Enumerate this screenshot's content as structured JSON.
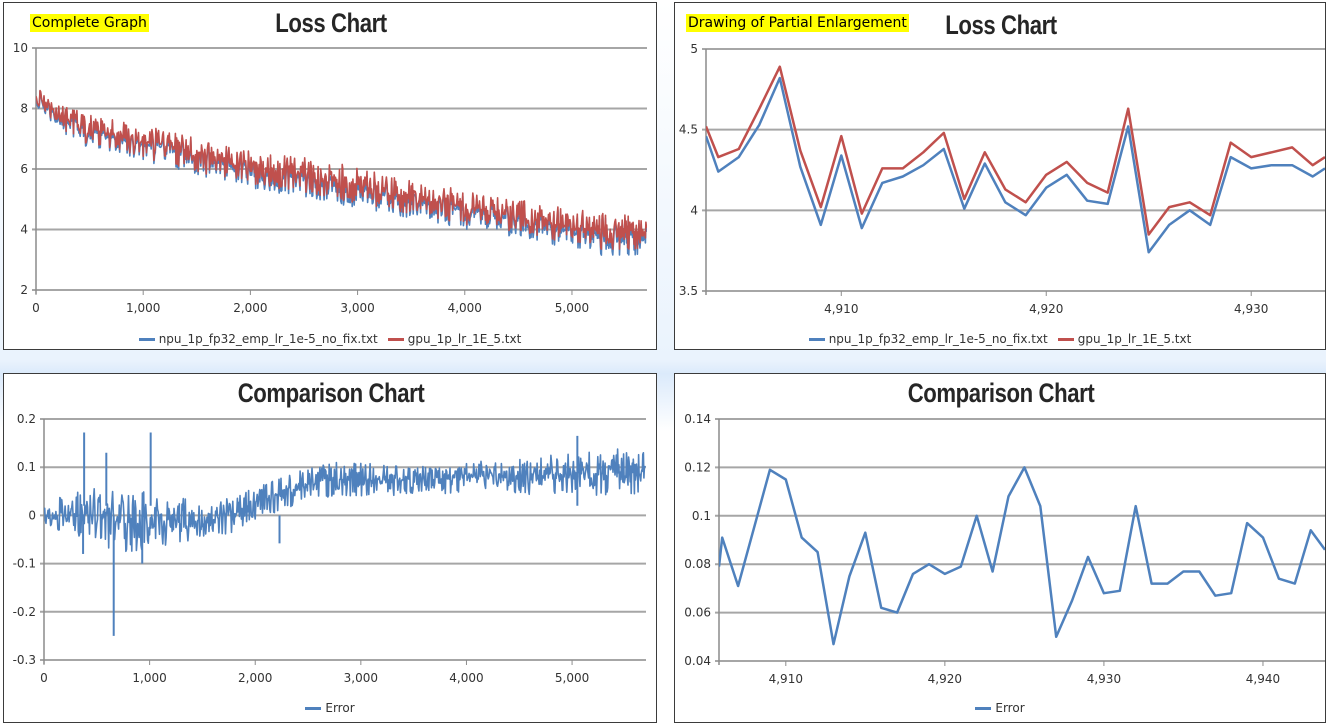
{
  "colors": {
    "npu": "#4f81bd",
    "gpu": "#c0504d",
    "error": "#4f81bd"
  },
  "chart_data": [
    {
      "id": "loss-full",
      "type": "line",
      "tag": "Complete Graph",
      "title": "Loss Chart",
      "xlim": [
        0,
        5700
      ],
      "ylim": [
        2,
        10
      ],
      "xticks": [
        0,
        1000,
        2000,
        3000,
        4000,
        5000
      ],
      "xtick_labels": [
        "0",
        "1,000",
        "2,000",
        "3,000",
        "4,000",
        "5,000"
      ],
      "yticks": [
        2,
        4,
        6,
        8,
        10
      ],
      "ytick_labels": [
        "2",
        "4",
        "6",
        "8",
        "10"
      ],
      "grid": true,
      "legend": "bottom",
      "x": [
        0,
        250,
        500,
        750,
        1000,
        1250,
        1500,
        1750,
        2000,
        2250,
        2500,
        2750,
        3000,
        3250,
        3500,
        3750,
        4000,
        4250,
        4500,
        4750,
        5000,
        5250,
        5500,
        5700
      ],
      "series": [
        {
          "name": "npu_1p_fp32_emp_lr_1e-5_no_fix.txt",
          "color_key": "npu",
          "min": [
            7.9,
            7.1,
            6.7,
            6.5,
            6.3,
            6.0,
            5.8,
            5.6,
            5.3,
            5.2,
            5.0,
            4.9,
            4.7,
            4.5,
            4.3,
            4.2,
            4.0,
            3.85,
            3.6,
            3.5,
            3.3,
            3.1,
            3.1,
            3.2
          ],
          "max": [
            8.7,
            8.0,
            7.8,
            7.5,
            7.3,
            7.2,
            6.9,
            6.7,
            6.5,
            6.4,
            6.3,
            6.0,
            5.9,
            5.7,
            5.5,
            5.4,
            5.2,
            5.0,
            4.9,
            4.7,
            4.6,
            4.5,
            4.4,
            4.2
          ]
        },
        {
          "name": "gpu_1p_lr_1E_5.txt",
          "color_key": "gpu",
          "min": [
            8.0,
            7.2,
            6.8,
            6.6,
            6.4,
            6.1,
            5.9,
            5.7,
            5.45,
            5.35,
            5.15,
            5.05,
            4.85,
            4.65,
            4.45,
            4.35,
            4.15,
            4.0,
            3.8,
            3.65,
            3.5,
            3.3,
            3.3,
            3.4
          ],
          "max": [
            8.7,
            8.1,
            7.9,
            7.6,
            7.4,
            7.3,
            7.0,
            6.8,
            6.6,
            6.5,
            6.4,
            6.2,
            6.1,
            5.8,
            5.6,
            5.5,
            5.3,
            5.1,
            5.0,
            4.8,
            4.7,
            4.6,
            4.5,
            4.3
          ]
        }
      ]
    },
    {
      "id": "loss-zoom",
      "type": "line",
      "tag": "Drawing of Partial Enlargement",
      "title": "Loss Chart",
      "xlim": [
        4903.4,
        4933.6
      ],
      "ylim": [
        3.5,
        5
      ],
      "xticks": [
        4910,
        4920,
        4930
      ],
      "xtick_labels": [
        "4,910",
        "4,920",
        "4,930"
      ],
      "yticks": [
        3.5,
        4,
        4.5,
        5
      ],
      "ytick_labels": [
        "3.5",
        "4",
        "4.5",
        "5"
      ],
      "grid": true,
      "legend": "bottom",
      "x": [
        4903.4,
        4904,
        4905,
        4906,
        4907,
        4908,
        4909,
        4910,
        4911,
        4912,
        4913,
        4914,
        4915,
        4916,
        4917,
        4918,
        4919,
        4920,
        4921,
        4922,
        4923,
        4924,
        4925,
        4926,
        4927,
        4928,
        4929,
        4930,
        4931,
        4932,
        4933,
        4933.6
      ],
      "series": [
        {
          "name": "npu_1p_fp32_emp_lr_1e-5_no_fix.txt",
          "color_key": "npu",
          "values": [
            4.46,
            4.24,
            4.33,
            4.53,
            4.82,
            4.27,
            3.91,
            4.34,
            3.89,
            4.17,
            4.21,
            4.28,
            4.38,
            4.01,
            4.29,
            4.05,
            3.97,
            4.14,
            4.22,
            4.06,
            4.04,
            4.52,
            3.74,
            3.91,
            4.0,
            3.91,
            4.33,
            4.26,
            4.28,
            4.28,
            4.21,
            4.26
          ]
        },
        {
          "name": "gpu_1p_lr_1E_5.txt",
          "color_key": "gpu",
          "values": [
            4.52,
            4.33,
            4.38,
            4.63,
            4.89,
            4.37,
            4.02,
            4.46,
            3.98,
            4.26,
            4.26,
            4.36,
            4.48,
            4.07,
            4.36,
            4.13,
            4.05,
            4.22,
            4.3,
            4.17,
            4.11,
            4.63,
            3.85,
            4.02,
            4.05,
            3.97,
            4.42,
            4.33,
            4.36,
            4.39,
            4.28,
            4.33
          ]
        }
      ]
    },
    {
      "id": "error-full",
      "type": "line",
      "title": "Comparison Chart",
      "xlim": [
        0,
        5700
      ],
      "ylim": [
        -0.3,
        0.2
      ],
      "xticks": [
        0,
        1000,
        2000,
        3000,
        4000,
        5000
      ],
      "xtick_labels": [
        "0",
        "1,000",
        "2,000",
        "3,000",
        "4,000",
        "5,000"
      ],
      "yticks": [
        -0.3,
        -0.2,
        -0.1,
        0,
        0.1,
        0.2
      ],
      "ytick_labels": [
        "-0.3",
        "-0.2",
        "-0.1",
        "0",
        "0.1",
        "0.2"
      ],
      "grid": true,
      "legend": "bottom",
      "x": [
        0,
        250,
        500,
        750,
        1000,
        1250,
        1500,
        1750,
        2000,
        2250,
        2500,
        2750,
        3000,
        3250,
        3500,
        3750,
        4000,
        4250,
        4500,
        4750,
        5000,
        5250,
        5500,
        5700
      ],
      "series": [
        {
          "name": "Error",
          "color_key": "error",
          "min": [
            -0.02,
            -0.04,
            -0.06,
            -0.08,
            -0.07,
            -0.06,
            -0.05,
            -0.04,
            -0.01,
            0.01,
            0.03,
            0.04,
            0.04,
            0.04,
            0.045,
            0.045,
            0.045,
            0.05,
            0.045,
            0.04,
            0.04,
            0.04,
            0.04,
            0.05
          ],
          "max": [
            0.02,
            0.05,
            0.06,
            0.05,
            0.05,
            0.04,
            0.03,
            0.04,
            0.06,
            0.08,
            0.1,
            0.11,
            0.11,
            0.105,
            0.105,
            0.11,
            0.11,
            0.115,
            0.12,
            0.125,
            0.13,
            0.135,
            0.14,
            0.14
          ],
          "spikes": [
            [
              380,
              0.172
            ],
            [
              370,
              -0.08
            ],
            [
              590,
              0.13
            ],
            [
              660,
              -0.25
            ],
            [
              930,
              -0.1
            ],
            [
              1010,
              0.172
            ],
            [
              2230,
              -0.058
            ],
            [
              5050,
              0.165
            ]
          ]
        }
      ]
    },
    {
      "id": "error-zoom",
      "type": "line",
      "title": "Comparison Chart",
      "xlim": [
        4905.8,
        4943.9
      ],
      "ylim": [
        0.04,
        0.14
      ],
      "xticks": [
        4910,
        4920,
        4930,
        4940
      ],
      "xtick_labels": [
        "4,910",
        "4,920",
        "4,930",
        "4,940"
      ],
      "yticks": [
        0.04,
        0.06,
        0.08,
        0.1,
        0.12,
        0.14
      ],
      "ytick_labels": [
        "0.04",
        "0.06",
        "0.08",
        "0.1",
        "0.12",
        "0.14"
      ],
      "grid": true,
      "legend": "bottom",
      "x": [
        4905.8,
        4906,
        4907,
        4908,
        4909,
        4910,
        4911,
        4912,
        4913,
        4914,
        4915,
        4916,
        4917,
        4918,
        4919,
        4920,
        4921,
        4922,
        4923,
        4924,
        4925,
        4926,
        4927,
        4928,
        4929,
        4930,
        4931,
        4932,
        4933,
        4934,
        4935,
        4936,
        4937,
        4938,
        4939,
        4940,
        4941,
        4942,
        4943,
        4943.9
      ],
      "series": [
        {
          "name": "Error",
          "color_key": "error",
          "values": [
            0.079,
            0.091,
            0.071,
            0.095,
            0.119,
            0.115,
            0.091,
            0.085,
            0.047,
            0.075,
            0.093,
            0.062,
            0.06,
            0.076,
            0.08,
            0.076,
            0.079,
            0.1,
            0.077,
            0.108,
            0.12,
            0.104,
            0.05,
            0.065,
            0.083,
            0.068,
            0.069,
            0.104,
            0.072,
            0.072,
            0.077,
            0.077,
            0.067,
            0.068,
            0.097,
            0.091,
            0.074,
            0.072,
            0.094,
            0.086
          ]
        }
      ]
    }
  ]
}
